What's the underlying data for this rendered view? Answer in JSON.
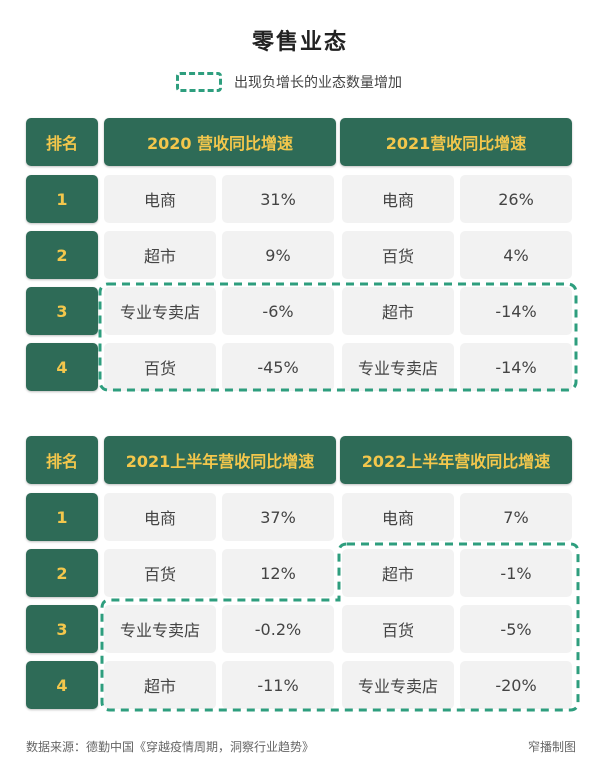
{
  "title": "零售业态",
  "legend": {
    "text": "出现负增长的业态数量增加"
  },
  "table1": {
    "rank_header": "排名",
    "col1_header": "2020 营收同比增速",
    "col2_header": "2021营收同比增速",
    "rows": [
      {
        "rank": "1",
        "a_name": "电商",
        "a_val": "31%",
        "b_name": "电商",
        "b_val": "26%"
      },
      {
        "rank": "2",
        "a_name": "超市",
        "a_val": "9%",
        "b_name": "百货",
        "b_val": "4%"
      },
      {
        "rank": "3",
        "a_name": "专业专卖店",
        "a_val": "-6%",
        "b_name": "超市",
        "b_val": "-14%"
      },
      {
        "rank": "4",
        "a_name": "百货",
        "a_val": "-45%",
        "b_name": "专业专卖店",
        "b_val": "-14%"
      }
    ]
  },
  "table2": {
    "rank_header": "排名",
    "col1_header": "2021上半年营收同比增速",
    "col2_header": "2022上半年营收同比增速",
    "rows": [
      {
        "rank": "1",
        "a_name": "电商",
        "a_val": "37%",
        "b_name": "电商",
        "b_val": "7%"
      },
      {
        "rank": "2",
        "a_name": "百货",
        "a_val": "12%",
        "b_name": "超市",
        "b_val": "-1%"
      },
      {
        "rank": "3",
        "a_name": "专业专卖店",
        "a_val": "-0.2%",
        "b_name": "百货",
        "b_val": "-5%"
      },
      {
        "rank": "4",
        "a_name": "超市",
        "a_val": "-11%",
        "b_name": "专业专卖店",
        "b_val": "-20%"
      }
    ]
  },
  "footer": {
    "source": "数据来源：德勤中国《穿越疫情周期，洞察行业趋势》",
    "credit": "窄播制图"
  },
  "colors": {
    "header_bg": "#2e6b57",
    "header_text": "#f3c74c",
    "cell_bg": "#f2f2f2",
    "dash": "#2e9e7e"
  }
}
